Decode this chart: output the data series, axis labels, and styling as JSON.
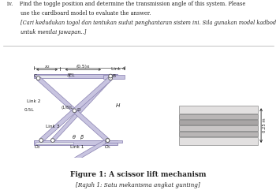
{
  "title_text": "Figure 1: A scissor lift mechanism",
  "subtitle_text": "[Rajah 1: Satu mekanisma angkat gunting]",
  "header_line1": "iv.    Find the toggle position and determine the transmission angle of this system. Please",
  "header_line2": "        use the cardboard model to evaluate the answer.",
  "header_line3": "        [Cari kedudukan togol dan tentukan sudut penghantaran sistem ini. Sila gunakan model kadbod",
  "header_line4": "        untuk menilai jawapan..]",
  "bg_color": "#ffffff",
  "link_fill": "#c8c4e0",
  "link_edge": "#8880b0",
  "pivot_fill": "#ffffff",
  "pivot_edge": "#555555",
  "rail_fill": "#d0cce8",
  "rail_inner_fill": "#e8e8e8",
  "rail_edge": "#8880b0",
  "text_color": "#222222",
  "dim_color": "#333333",
  "card_colors": [
    "#e8e8e8",
    "#b0aeae",
    "#c0bebe",
    "#a0a0a0",
    "#d0d0d0",
    "#e8e8e8"
  ],
  "card_edges": [
    "#888",
    "#777",
    "#888",
    "#777",
    "#888",
    "#888"
  ]
}
